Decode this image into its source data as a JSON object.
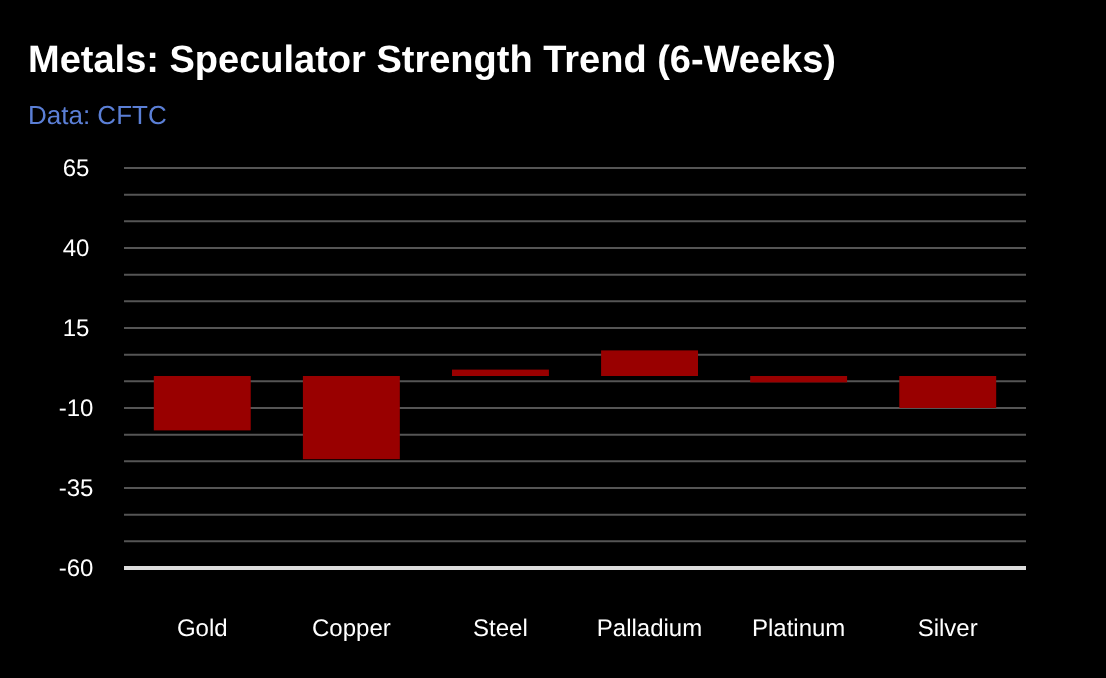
{
  "chart_data": {
    "type": "bar",
    "title": "Metals: Speculator Strength Trend (6-Weeks)",
    "annotations": [
      "Data: CFTC"
    ],
    "categories": [
      "Gold",
      "Copper",
      "Steel",
      "Palladium",
      "Platinum",
      "Silver"
    ],
    "values": [
      -17,
      -26,
      2,
      8,
      -2,
      -10
    ],
    "color": "#990000",
    "ylim": [
      -60,
      65
    ],
    "yticks": [
      -60,
      {
        "value": -51.67,
        "label": null
      },
      {
        "value": -43.33,
        "label": null
      },
      -35,
      {
        "value": -26.67,
        "label": null
      },
      {
        "value": -18.33,
        "label": null
      },
      -10,
      {
        "value": -1.67,
        "label": null
      },
      {
        "value": 6.67,
        "label": null
      },
      15,
      {
        "value": 23.33,
        "label": null
      },
      {
        "value": 31.67,
        "label": null
      },
      40,
      {
        "value": 48.33,
        "label": null
      },
      {
        "value": 56.67,
        "label": null
      },
      65
    ],
    "grid": true
  }
}
